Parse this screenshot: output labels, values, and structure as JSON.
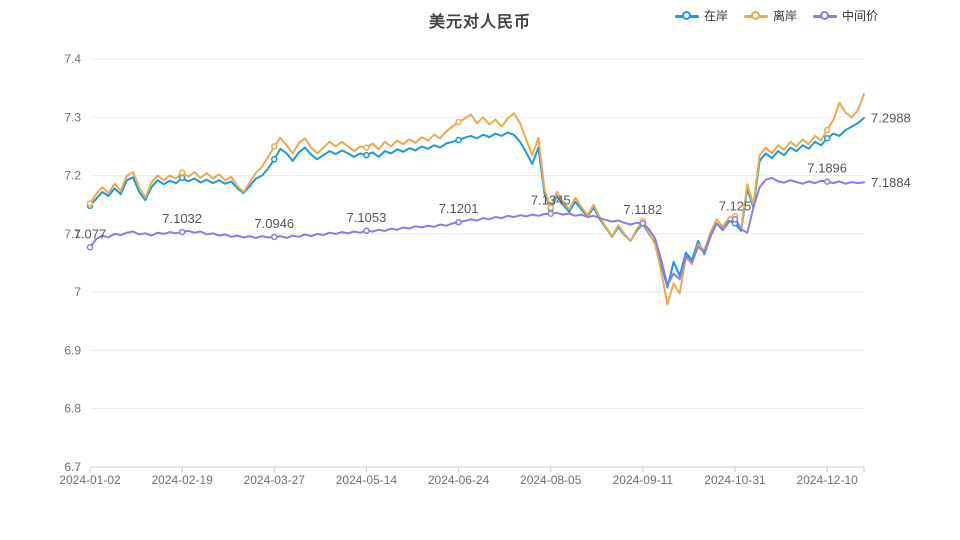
{
  "title": "美元对人民币",
  "legend": {
    "position": "top-right",
    "items": [
      {
        "id": "onshore",
        "label": "在岸",
        "color": "#1b9bd8",
        "icon": "line-circle-marker-icon"
      },
      {
        "id": "offshore",
        "label": "离岸",
        "color": "#e9ab4e",
        "icon": "line-circle-marker-icon"
      },
      {
        "id": "midprice",
        "label": "中间价",
        "color": "#8b7ce8",
        "icon": "line-circle-marker-icon"
      }
    ]
  },
  "chart_data": {
    "type": "line",
    "title": "美元对人民币",
    "xlabel": "",
    "ylabel": "",
    "ylim": [
      6.7,
      7.4
    ],
    "y_ticks": [
      "7.4",
      "7.3",
      "7.2",
      "7.1",
      "7",
      "6.9",
      "6.8",
      "6.7"
    ],
    "x_tick_labels": [
      "2024-01-02",
      "2024-02-19",
      "2024-03-27",
      "2024-05-14",
      "2024-06-24",
      "2024-08-05",
      "2024-09-11",
      "2024-10-31",
      "2024-12-10"
    ],
    "grid": true,
    "legend_position": "top-right",
    "marker_indices": [
      0,
      15,
      30,
      45,
      60,
      75,
      90,
      105,
      120
    ],
    "series": [
      {
        "id": "onshore",
        "name": "在岸",
        "color": "#1b9bd8",
        "end_label": "7.2988",
        "values": [
          7.148,
          7.16,
          7.172,
          7.165,
          7.178,
          7.168,
          7.192,
          7.197,
          7.172,
          7.158,
          7.18,
          7.192,
          7.185,
          7.191,
          7.187,
          7.196,
          7.19,
          7.195,
          7.188,
          7.193,
          7.187,
          7.192,
          7.186,
          7.19,
          7.178,
          7.17,
          7.182,
          7.195,
          7.2,
          7.212,
          7.228,
          7.246,
          7.238,
          7.225,
          7.24,
          7.248,
          7.236,
          7.228,
          7.235,
          7.242,
          7.237,
          7.243,
          7.238,
          7.232,
          7.238,
          7.235,
          7.24,
          7.232,
          7.242,
          7.238,
          7.245,
          7.241,
          7.247,
          7.243,
          7.25,
          7.246,
          7.252,
          7.248,
          7.255,
          7.258,
          7.261,
          7.265,
          7.268,
          7.264,
          7.27,
          7.266,
          7.272,
          7.268,
          7.274,
          7.27,
          7.258,
          7.24,
          7.22,
          7.248,
          7.168,
          7.143,
          7.165,
          7.15,
          7.138,
          7.155,
          7.142,
          7.13,
          7.145,
          7.125,
          7.11,
          7.095,
          7.112,
          7.098,
          7.088,
          7.105,
          7.118,
          7.1,
          7.085,
          7.048,
          7.008,
          7.052,
          7.028,
          7.068,
          7.055,
          7.088,
          7.065,
          7.095,
          7.118,
          7.108,
          7.122,
          7.118,
          7.105,
          7.178,
          7.145,
          7.225,
          7.238,
          7.23,
          7.242,
          7.235,
          7.248,
          7.242,
          7.252,
          7.246,
          7.258,
          7.252,
          7.264,
          7.272,
          7.268,
          7.278,
          7.284,
          7.29,
          7.2988
        ]
      },
      {
        "id": "offshore",
        "name": "离岸",
        "color": "#e9ab4e",
        "values": [
          7.152,
          7.168,
          7.18,
          7.17,
          7.186,
          7.174,
          7.2,
          7.206,
          7.18,
          7.162,
          7.188,
          7.2,
          7.192,
          7.2,
          7.195,
          7.205,
          7.198,
          7.206,
          7.196,
          7.204,
          7.195,
          7.202,
          7.192,
          7.198,
          7.182,
          7.172,
          7.188,
          7.205,
          7.215,
          7.232,
          7.25,
          7.265,
          7.252,
          7.238,
          7.256,
          7.264,
          7.248,
          7.238,
          7.248,
          7.258,
          7.25,
          7.258,
          7.25,
          7.242,
          7.25,
          7.248,
          7.255,
          7.245,
          7.258,
          7.25,
          7.26,
          7.254,
          7.262,
          7.256,
          7.266,
          7.26,
          7.27,
          7.264,
          7.276,
          7.284,
          7.292,
          7.298,
          7.305,
          7.29,
          7.3,
          7.288,
          7.296,
          7.284,
          7.298,
          7.307,
          7.29,
          7.262,
          7.235,
          7.265,
          7.175,
          7.145,
          7.172,
          7.155,
          7.142,
          7.162,
          7.146,
          7.132,
          7.15,
          7.128,
          7.112,
          7.096,
          7.115,
          7.1,
          7.088,
          7.108,
          7.122,
          7.102,
          7.082,
          7.035,
          6.979,
          7.015,
          6.998,
          7.06,
          7.048,
          7.082,
          7.072,
          7.102,
          7.125,
          7.112,
          7.128,
          7.13,
          7.108,
          7.185,
          7.15,
          7.235,
          7.248,
          7.238,
          7.252,
          7.244,
          7.258,
          7.25,
          7.262,
          7.254,
          7.268,
          7.26,
          7.278,
          7.295,
          7.325,
          7.308,
          7.3,
          7.312,
          7.34
        ]
      },
      {
        "id": "midprice",
        "name": "中间价",
        "color": "#8b7ce8",
        "end_label": "7.1884",
        "point_labels": [
          {
            "index": 0,
            "text": "7.077"
          },
          {
            "index": 15,
            "text": "7.1032"
          },
          {
            "index": 30,
            "text": "7.0946"
          },
          {
            "index": 45,
            "text": "7.1053"
          },
          {
            "index": 60,
            "text": "7.1201"
          },
          {
            "index": 75,
            "text": "7.1345"
          },
          {
            "index": 90,
            "text": "7.1182"
          },
          {
            "index": 105,
            "text": "7.125"
          },
          {
            "index": 120,
            "text": "7.1896"
          }
        ],
        "values": [
          7.077,
          7.091,
          7.097,
          7.094,
          7.1,
          7.098,
          7.102,
          7.104,
          7.099,
          7.101,
          7.097,
          7.102,
          7.1,
          7.103,
          7.101,
          7.1032,
          7.105,
          7.102,
          7.104,
          7.099,
          7.101,
          7.097,
          7.099,
          7.095,
          7.097,
          7.094,
          7.096,
          7.093,
          7.096,
          7.094,
          7.0946,
          7.096,
          7.093,
          7.097,
          7.095,
          7.099,
          7.096,
          7.1,
          7.098,
          7.102,
          7.1,
          7.103,
          7.101,
          7.104,
          7.102,
          7.1053,
          7.104,
          7.107,
          7.105,
          7.109,
          7.107,
          7.111,
          7.109,
          7.113,
          7.111,
          7.114,
          7.112,
          7.116,
          7.114,
          7.118,
          7.1201,
          7.122,
          7.125,
          7.123,
          7.127,
          7.125,
          7.129,
          7.127,
          7.131,
          7.129,
          7.132,
          7.13,
          7.133,
          7.131,
          7.134,
          7.1345,
          7.136,
          7.133,
          7.135,
          7.131,
          7.133,
          7.129,
          7.131,
          7.127,
          7.124,
          7.121,
          7.123,
          7.119,
          7.116,
          7.119,
          7.1182,
          7.108,
          7.092,
          7.055,
          7.012,
          7.032,
          7.022,
          7.062,
          7.052,
          7.078,
          7.068,
          7.096,
          7.118,
          7.106,
          7.12,
          7.125,
          7.108,
          7.102,
          7.145,
          7.18,
          7.193,
          7.196,
          7.19,
          7.188,
          7.192,
          7.189,
          7.186,
          7.19,
          7.187,
          7.191,
          7.1896,
          7.187,
          7.19,
          7.186,
          7.189,
          7.187,
          7.1884
        ]
      }
    ],
    "colors": {
      "grid_line": "#e7ebf2",
      "axis_line": "#c7cbd2",
      "axis_text": "#6e7079",
      "data_label_text": "#54575b"
    }
  }
}
